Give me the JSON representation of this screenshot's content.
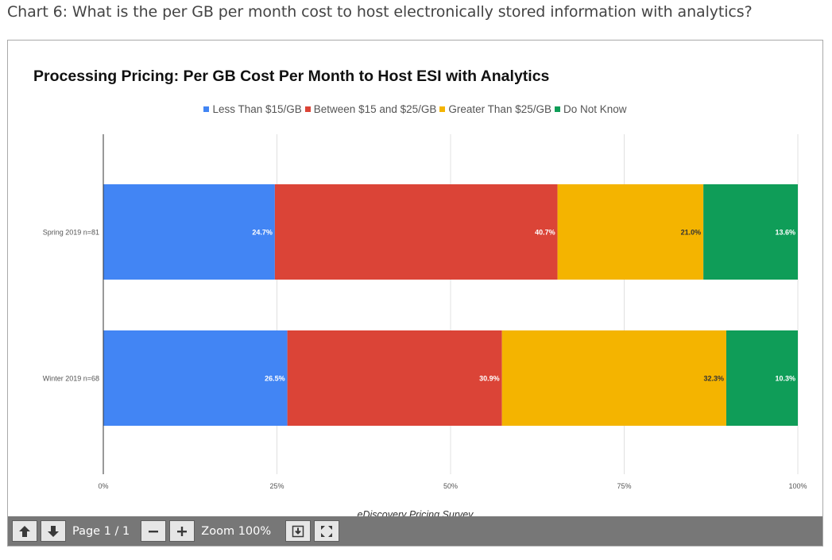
{
  "page": {
    "heading": "Chart 6:  What is the per GB per month cost to host electronically stored information with analytics?"
  },
  "chart_data": {
    "type": "bar",
    "orientation": "horizontal",
    "stacked": "percent",
    "title": "Processing Pricing: Per GB Cost Per Month to Host ESI with Analytics",
    "source": "eDiscovery Pricing Survey",
    "categories": [
      "Spring 2019 n=81",
      "Winter 2019 n=68"
    ],
    "series": [
      {
        "name": "Less Than $15/GB",
        "color": "#4285f4",
        "values": [
          24.7,
          26.5
        ],
        "labels": [
          "24.7%",
          "26.5%"
        ],
        "label_color": "#ffffff"
      },
      {
        "name": "Between $15 and $25/GB",
        "color": "#db4437",
        "values": [
          40.7,
          30.9
        ],
        "labels": [
          "40.7%",
          "30.9%"
        ],
        "label_color": "#ffffff"
      },
      {
        "name": "Greater Than $25/GB",
        "color": "#f4b400",
        "values": [
          21.0,
          32.3
        ],
        "labels": [
          "21.0%",
          "32.3%"
        ],
        "label_color": "#333333"
      },
      {
        "name": "Do Not Know",
        "color": "#0f9d58",
        "values": [
          13.6,
          10.3
        ],
        "labels": [
          "13.6%",
          "10.3%"
        ],
        "label_color": "#ffffff"
      }
    ],
    "xlim": [
      0,
      100
    ],
    "xticks": [
      0,
      25,
      50,
      75,
      100
    ],
    "xtick_labels": [
      "0%",
      "25%",
      "50%",
      "75%",
      "100%"
    ],
    "grid": true,
    "legend_position": "top-center"
  },
  "toolbar": {
    "up_icon": "arrow-up-icon",
    "down_icon": "arrow-down-icon",
    "page_text": "Page 1 / 1",
    "zoom_out_icon": "minus-icon",
    "zoom_in_icon": "plus-icon",
    "zoom_text": "Zoom 100%",
    "download_icon": "download-icon",
    "fullscreen_icon": "fullscreen-icon"
  }
}
